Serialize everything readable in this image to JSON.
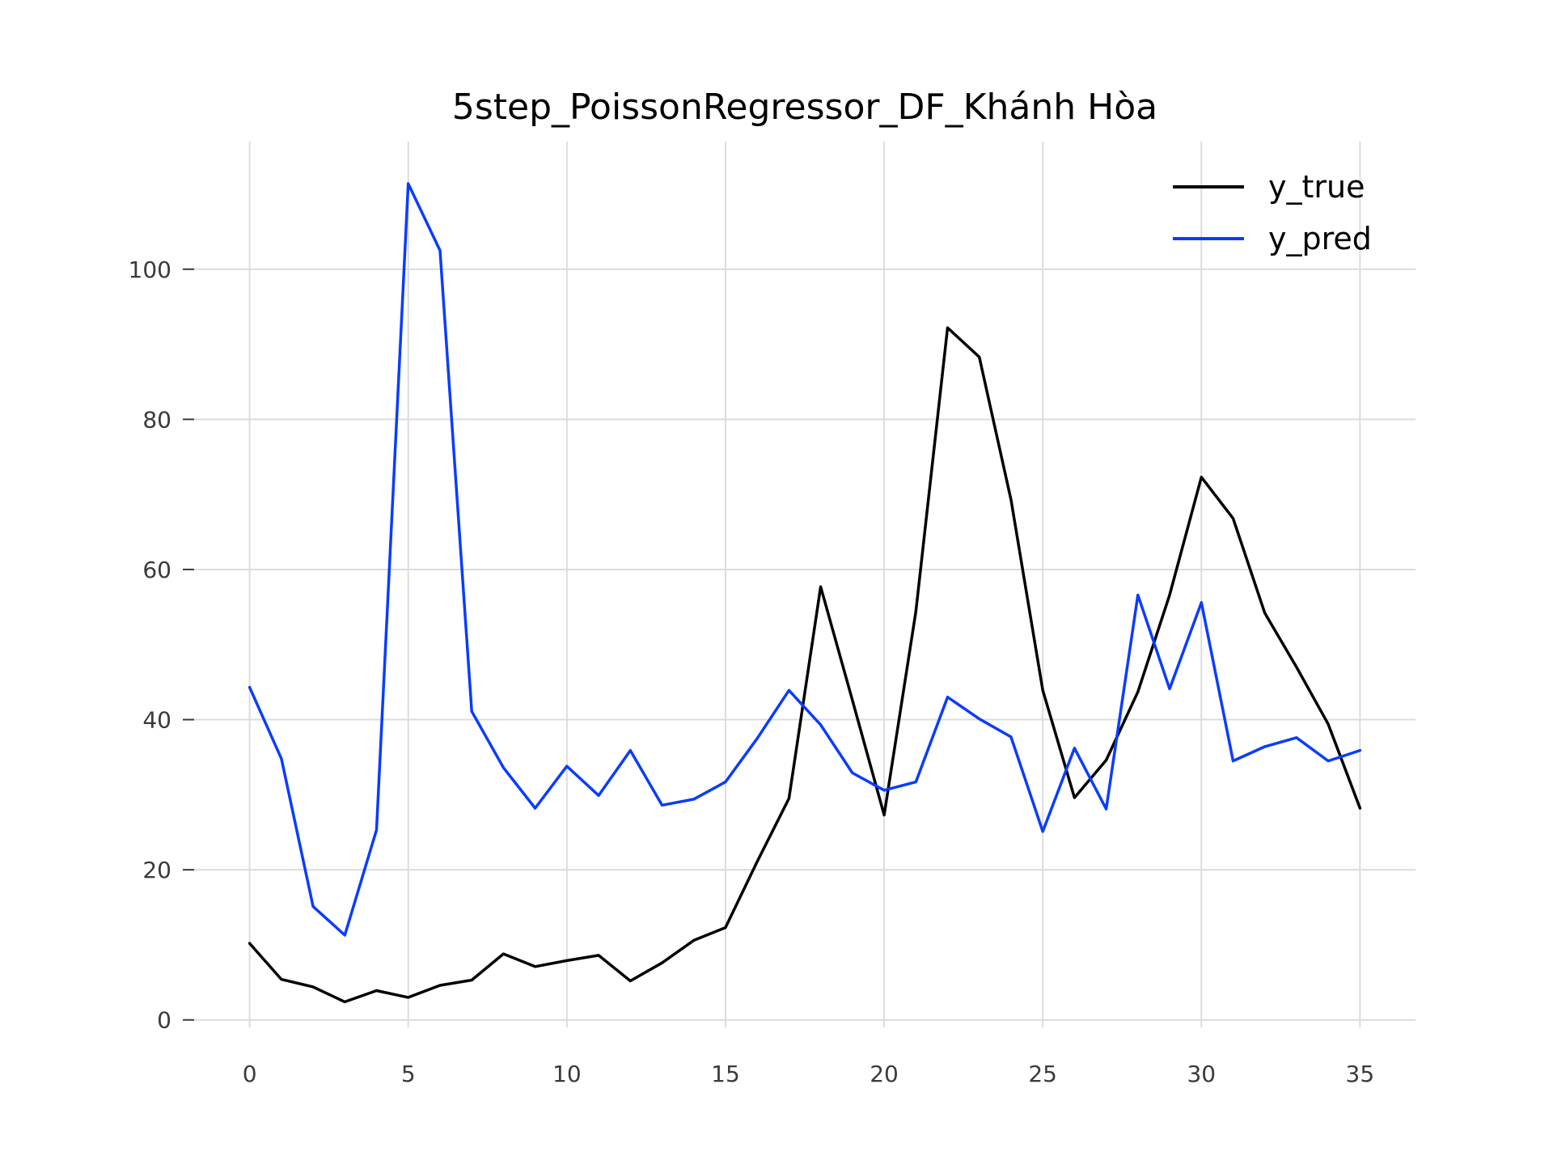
{
  "chart_data": {
    "type": "line",
    "title": "5step_PoissonRegressor_DF_Khánh Hòa",
    "xlabel": "",
    "ylabel": "",
    "x": [
      0,
      1,
      2,
      3,
      4,
      5,
      6,
      7,
      8,
      9,
      10,
      11,
      12,
      13,
      14,
      15,
      16,
      17,
      18,
      19,
      20,
      21,
      22,
      23,
      24,
      25,
      26,
      27,
      28,
      29,
      30,
      31,
      32,
      33,
      34,
      35
    ],
    "xlim": [
      -1.75,
      36.75
    ],
    "ylim": [
      -1.0,
      117.0
    ],
    "xticks": [
      0,
      5,
      10,
      15,
      20,
      25,
      30,
      35
    ],
    "xtick_labels": [
      "0",
      "5",
      "10",
      "15",
      "20",
      "25",
      "30",
      "35"
    ],
    "yticks": [
      0,
      20,
      40,
      60,
      80,
      100
    ],
    "ytick_labels": [
      "0",
      "20",
      "40",
      "60",
      "80",
      "100"
    ],
    "grid": true,
    "legend_position": "top-right",
    "series": [
      {
        "name": "y_true",
        "color": "#000000",
        "values": [
          10.2,
          5.4,
          4.4,
          2.4,
          3.9,
          3.0,
          4.6,
          5.3,
          8.8,
          7.1,
          7.9,
          8.6,
          5.2,
          7.6,
          10.6,
          12.3,
          21.1,
          29.5,
          57.7,
          42.6,
          27.3,
          54.4,
          92.2,
          88.3,
          69.3,
          43.9,
          29.6,
          34.6,
          43.7,
          56.6,
          72.3,
          66.8,
          54.2,
          47.0,
          39.4,
          28.2
        ]
      },
      {
        "name": "y_pred",
        "color": "#0a3cff",
        "values": [
          44.3,
          34.8,
          15.1,
          11.3,
          25.3,
          111.4,
          102.5,
          41.1,
          33.6,
          28.2,
          33.8,
          29.9,
          35.9,
          28.6,
          29.4,
          31.7,
          37.5,
          43.9,
          39.3,
          32.9,
          30.6,
          31.7,
          43.0,
          40.1,
          37.7,
          25.1,
          36.2,
          28.1,
          56.6,
          44.1,
          55.6,
          34.5,
          36.4,
          37.6,
          34.5,
          35.9
        ]
      }
    ]
  }
}
